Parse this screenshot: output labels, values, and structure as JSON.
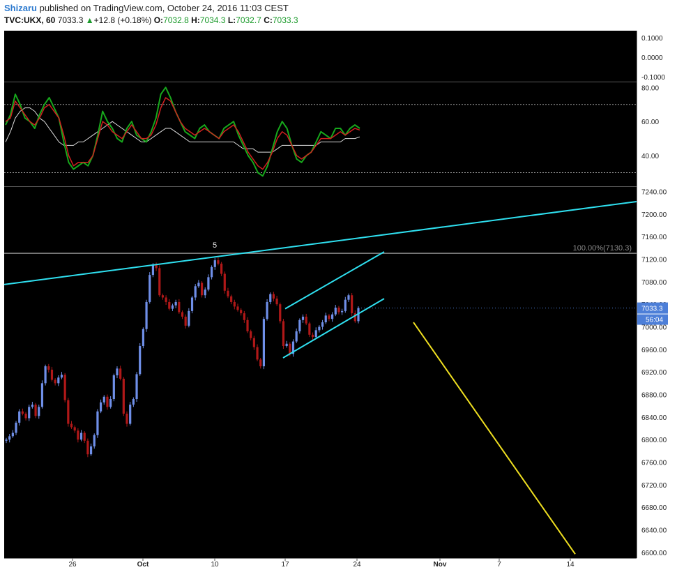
{
  "header": {
    "author": "Shizaru",
    "published_text": "published on TradingView.com, October 24, 2016 11:03 CEST",
    "symbol": "TVC:UKX, 60",
    "last": "7033.3",
    "change_arrow": "▲",
    "change": "+12.8 (+0.18%)",
    "o_label": "O:",
    "o_value": "7032.8",
    "h_label": "H:",
    "h_value": "7034.3",
    "l_label": "L:",
    "l_value": "7032.7",
    "c_label": "C:",
    "c_value": "7033.3"
  },
  "colors": {
    "background": "#000000",
    "up_candle": "#6f8fe8",
    "down_candle": "#b01818",
    "channel_line": "#2fe0f0",
    "projection_line": "#f0e020",
    "fib_line": "#8a8a8a",
    "rsi_fast": "#17a81c",
    "rsi_slow": "#d02020",
    "rsi_avg": "#dddddd",
    "price_tag": "#4d7fd8"
  },
  "chart_data": [
    {
      "type": "line",
      "panel": "top-indicator",
      "y_ticks": [
        "0.1000",
        "0.0000",
        "-0.1000"
      ]
    },
    {
      "type": "line",
      "panel": "oscillator",
      "y_ticks": [
        "80.00",
        "60.00",
        "40.00"
      ],
      "reference_levels": [
        70,
        30
      ],
      "ylim": [
        22,
        83
      ],
      "series": [
        {
          "values": [
            58,
            64,
            76,
            70,
            62,
            60,
            56,
            64,
            70,
            74,
            68,
            62,
            48,
            36,
            32,
            34,
            36,
            34,
            40,
            52,
            66,
            60,
            56,
            50,
            48,
            56,
            60,
            52,
            50,
            48,
            54,
            62,
            76,
            80,
            74,
            66,
            60,
            54,
            52,
            50,
            56,
            58,
            54,
            52,
            50,
            56,
            58,
            60,
            52,
            46,
            40,
            36,
            30,
            28,
            34,
            44,
            54,
            60,
            56,
            46,
            38,
            36,
            40,
            42,
            48,
            54,
            52,
            50,
            56,
            56,
            52,
            56,
            58,
            56
          ]
        },
        {
          "values": [
            60,
            62,
            72,
            68,
            64,
            60,
            58,
            62,
            68,
            70,
            66,
            62,
            52,
            40,
            34,
            36,
            36,
            36,
            40,
            50,
            60,
            58,
            54,
            52,
            50,
            54,
            58,
            54,
            50,
            50,
            52,
            58,
            68,
            74,
            72,
            66,
            60,
            56,
            54,
            52,
            54,
            56,
            54,
            52,
            50,
            54,
            56,
            58,
            54,
            48,
            42,
            38,
            34,
            32,
            36,
            42,
            50,
            54,
            52,
            46,
            40,
            38,
            40,
            42,
            46,
            50,
            50,
            50,
            52,
            54,
            52,
            54,
            56,
            55
          ]
        },
        {
          "values": [
            48,
            54,
            62,
            66,
            68,
            68,
            66,
            62,
            60,
            56,
            52,
            48,
            46,
            46,
            46,
            48,
            48,
            50,
            52,
            54,
            56,
            58,
            60,
            58,
            56,
            54,
            52,
            50,
            48,
            48,
            50,
            52,
            54,
            56,
            56,
            54,
            52,
            50,
            48,
            48,
            48,
            48,
            48,
            48,
            48,
            48,
            48,
            48,
            46,
            44,
            44,
            44,
            42,
            42,
            42,
            42,
            44,
            46,
            46,
            46,
            46,
            46,
            46,
            46,
            46,
            48,
            48,
            48,
            48,
            48,
            50,
            50,
            50,
            51
          ]
        }
      ]
    },
    {
      "type": "candlestick",
      "panel": "price",
      "title": "",
      "ylim": [
        6590,
        7248
      ],
      "y_ticks": [
        7240,
        7200,
        7160,
        7120,
        7080,
        7040,
        7000,
        6960,
        6920,
        6880,
        6840,
        6800,
        6760,
        6720,
        6680,
        6640,
        6600
      ],
      "x_ticks": [
        "26",
        "Oct",
        "10",
        "17",
        "24",
        "Nov",
        "7",
        "14"
      ],
      "close_path": [
        6800,
        6806,
        6812,
        6830,
        6850,
        6846,
        6838,
        6858,
        6862,
        6842,
        6858,
        6900,
        6930,
        6924,
        6906,
        6900,
        6910,
        6915,
        6870,
        6828,
        6822,
        6816,
        6800,
        6812,
        6798,
        6774,
        6788,
        6808,
        6850,
        6866,
        6876,
        6858,
        6872,
        6914,
        6926,
        6908,
        6846,
        6828,
        6862,
        6872,
        6916,
        6966,
        6996,
        7044,
        7092,
        7110,
        7104,
        7056,
        7052,
        7044,
        7032,
        7038,
        7044,
        7026,
        7018,
        7002,
        7028,
        7052,
        7072,
        7078,
        7056,
        7066,
        7088,
        7106,
        7118,
        7112,
        7094,
        7064,
        7054,
        7044,
        7036,
        7030,
        7024,
        7012,
        6992,
        6980,
        6964,
        6942,
        6930,
        7014,
        7044,
        7058,
        7050,
        7040,
        7010,
        6966,
        6970,
        6952,
        6974,
        6992,
        7012,
        7018,
        7006,
        6986,
        6982,
        6994,
        7000,
        7008,
        7020,
        7014,
        7022,
        7034,
        7026,
        7028,
        7048,
        7056,
        7024,
        7010,
        7033.3
      ],
      "channel_upper": [
        [
          7033,
          7032
        ],
        [
          7131,
          7133
        ]
      ],
      "channel_lower": [
        [
          7027,
          6945
        ],
        [
          7141,
          7050
        ]
      ],
      "rising_line_y_at_left": 7075,
      "rising_line_y_at_right": 7222,
      "fib_level": {
        "label": "100.00%(7130.3)",
        "value": 7130.3
      },
      "wave_label": "5",
      "last_price": "7033.3",
      "countdown": "56:04"
    }
  ]
}
